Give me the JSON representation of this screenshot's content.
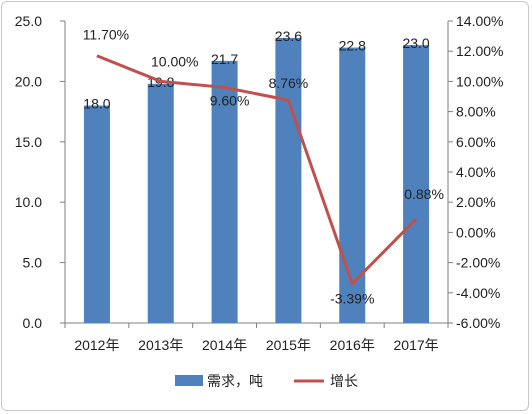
{
  "chart_data": {
    "type": "bar+line",
    "categories": [
      "2012年",
      "2013年",
      "2014年",
      "2015年",
      "2016年",
      "2017年"
    ],
    "series": [
      {
        "name": "需求，吨",
        "type": "bar",
        "axis": "left",
        "color": "#4f81bd",
        "values": [
          18.0,
          19.8,
          21.7,
          23.6,
          22.8,
          23.0
        ],
        "labels": [
          "18.0",
          "19.8",
          "21.7",
          "23.6",
          "22.8",
          "23.0"
        ]
      },
      {
        "name": "增长",
        "type": "line",
        "axis": "right",
        "color": "#c0504d",
        "values": [
          11.7,
          10.0,
          9.6,
          8.76,
          -3.39,
          0.88
        ],
        "labels": [
          "11.70%",
          "10.00%",
          "9.60%",
          "8.76%",
          "-3.39%",
          "0.88%"
        ]
      }
    ],
    "y_left": {
      "min": 0,
      "max": 25,
      "ticks": [
        "0.0",
        "5.0",
        "10.0",
        "15.0",
        "20.0",
        "25.0"
      ]
    },
    "y_right": {
      "min": -6,
      "max": 14,
      "ticks": [
        "-6.00%",
        "-4.00%",
        "-2.00%",
        "0.00%",
        "2.00%",
        "4.00%",
        "6.00%",
        "8.00%",
        "10.00%",
        "12.00%",
        "14.00%"
      ]
    },
    "grid": false,
    "legend": "bottom"
  }
}
